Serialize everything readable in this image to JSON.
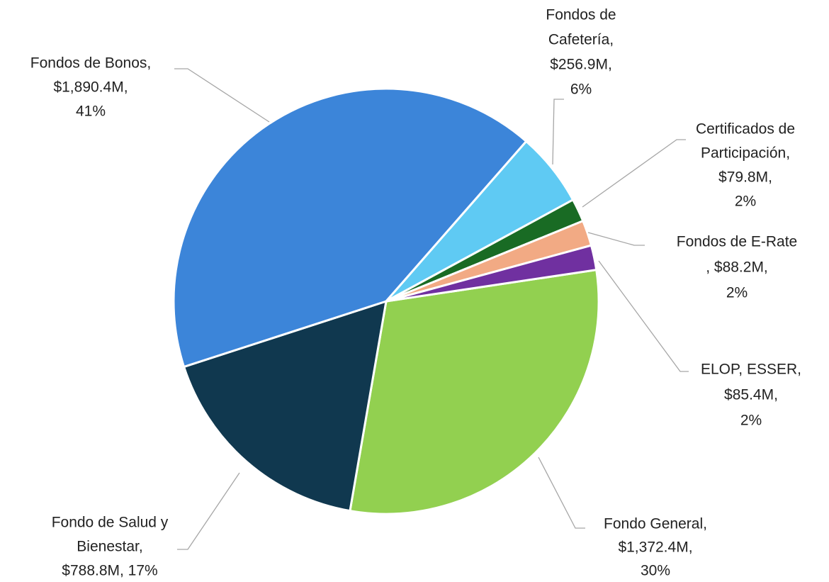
{
  "chart_data": {
    "type": "pie",
    "labels": [
      [
        "Fondo General,",
        "$1,372.4M,",
        "30%"
      ],
      [
        "Fondo de Salud y",
        "Bienestar,",
        "$788.8M, 17%"
      ],
      [
        "Fondos de Bonos,",
        "$1,890.4M,",
        "41%"
      ],
      [
        "Fondos de",
        "Cafetería,",
        "$256.9M,",
        "6%"
      ],
      [
        "Certificados de",
        "Participación,",
        "$79.8M,",
        "2%"
      ],
      [
        "Fondos de E-Rate",
        ", $88.2M,",
        "2%"
      ],
      [
        "ELOP, ESSER,",
        "$85.4M,",
        "2%"
      ]
    ],
    "values": [
      1372.4,
      788.8,
      1890.4,
      256.9,
      79.8,
      88.2,
      85.4
    ],
    "colors": [
      "#92d050",
      "#10384f",
      "#3c85d9",
      "#5fcaf3",
      "#196b24",
      "#f2aa84",
      "#7030a0"
    ]
  }
}
